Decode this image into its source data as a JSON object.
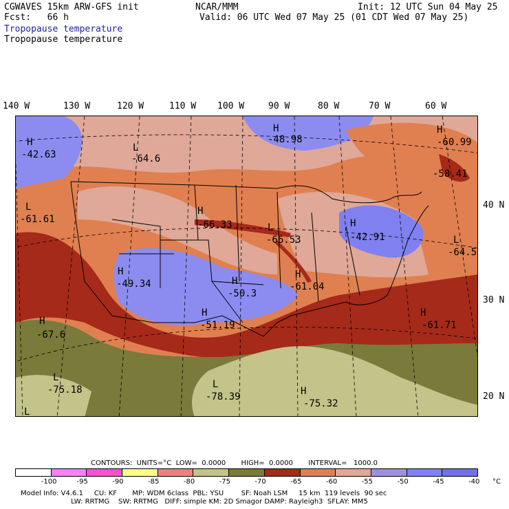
{
  "header": {
    "model": "CGWAVES 15km ARW-GFS init",
    "center": "NCAR/MMM",
    "init": "Init: 12 UTC Sun 04 May 25",
    "fcst": "Fcst:   66 h",
    "valid": "Valid: 06 UTC Wed 07 May 25 (01 CDT Wed 07 May 25)",
    "field_blue": "Tropopause temperature",
    "field_black": "Tropopause temperature"
  },
  "axes": {
    "lon_labels": [
      "140 W",
      "130 W",
      "120 W",
      "110 W",
      "100 W",
      "90 W",
      "80 W",
      "70 W",
      "60 W"
    ],
    "lat_labels": [
      "40 N",
      "30 N",
      "20 N"
    ]
  },
  "map_labels": [
    {
      "type": "H",
      "value": "-42.63"
    },
    {
      "type": "L",
      "value": "-64.6"
    },
    {
      "type": "H",
      "value": "-48.98"
    },
    {
      "type": "H",
      "value": "-60.99"
    },
    {
      "type": "",
      "value": "-58.41"
    },
    {
      "type": "L",
      "value": "-61.61"
    },
    {
      "type": "H",
      "value": "-66.33"
    },
    {
      "type": "L",
      "value": "-66.53"
    },
    {
      "type": "H",
      "value": "-42.91"
    },
    {
      "type": "L",
      "value": "-64.5"
    },
    {
      "type": "H",
      "value": "-49.34"
    },
    {
      "type": "H",
      "value": "-50.3"
    },
    {
      "type": "H",
      "value": "-61.04"
    },
    {
      "type": "H",
      "value": "-51.19"
    },
    {
      "type": "H",
      "value": "-67.6"
    },
    {
      "type": "H",
      "value": "-61.71"
    },
    {
      "type": "L",
      "value": "-75.18"
    },
    {
      "type": "L",
      "value": "-78.39"
    },
    {
      "type": "H",
      "value": "-75.32"
    },
    {
      "type": "L",
      "value": ""
    }
  ],
  "contours": {
    "line": "CONTOURS:  UNITS=°C  LOW=  0.0000       HIGH=  0.0000       INTERVAL=   1000.0"
  },
  "colorbar": {
    "colors": [
      "#ffffff",
      "#ff7df5",
      "#ff4fd0",
      "#ffff80",
      "#f08080",
      "#c3c38a",
      "#7a7a3a",
      "#a52a1a",
      "#e08050",
      "#dfa898",
      "#9f8fe0",
      "#8080ff",
      "#7070f0"
    ],
    "ticks": [
      "-100",
      "-95",
      "-90",
      "-85",
      "-80",
      "-75",
      "-70",
      "-65",
      "-60",
      "-55",
      "-50",
      "-45",
      "-40",
      "°C"
    ]
  },
  "footer": {
    "line1": "Model Info: V4.6.1     CU: KF       MP: WDM 6class  PBL: YSU        SF: Noah LSM     15 km  119 levels  90 sec",
    "line2": "                       LW: RRTMG    SW: RRTMG   DIFF: simple KM: 2D Smagor DAMP: Rayleigh3  SFLAY: MM5"
  }
}
